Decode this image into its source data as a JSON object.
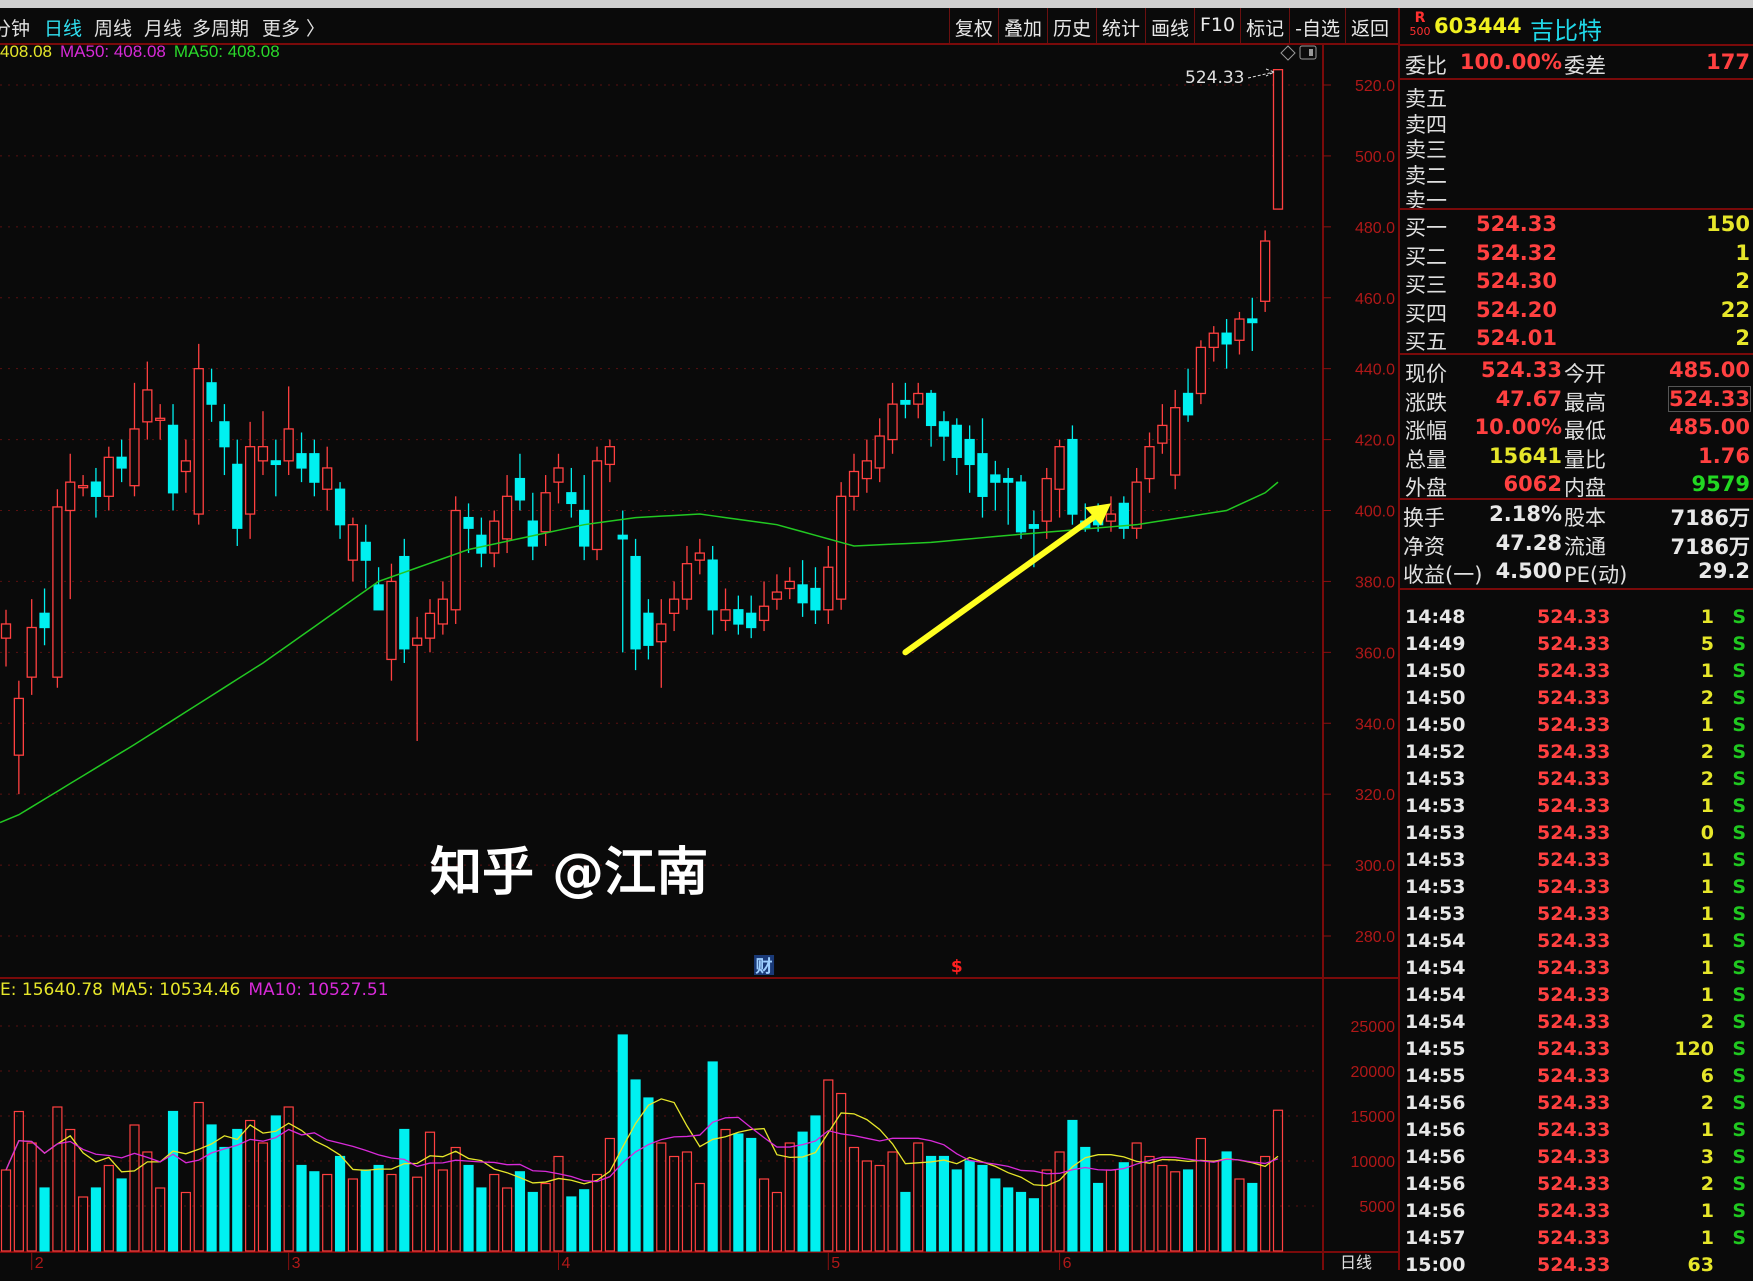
{
  "toolbar": {
    "periods": [
      {
        "label": "分钟",
        "active": false
      },
      {
        "label": "日线",
        "active": true
      },
      {
        "label": "周线",
        "active": false
      },
      {
        "label": "月线",
        "active": false
      },
      {
        "label": "多周期",
        "active": false
      },
      {
        "label": "更多 〉",
        "active": false
      }
    ],
    "buttons": [
      "复权",
      "叠加",
      "历史",
      "统计",
      "画线",
      "F10",
      "标记",
      "-自选",
      "返回"
    ]
  },
  "ma_legend": [
    {
      "text": "408.08",
      "color": "#e6e62a"
    },
    {
      "text": "MA50: 408.08",
      "color": "#d82ad8"
    },
    {
      "text": "MA50: 408.08",
      "color": "#2ad82a"
    }
  ],
  "vol_legend": [
    {
      "text": "E: 15640.78",
      "color": "#e6e62a"
    },
    {
      "text": "MA5: 10534.46",
      "color": "#e6e62a"
    },
    {
      "text": "MA10: 10527.51",
      "color": "#d82ad8"
    }
  ],
  "chart_data": {
    "type": "candlestick",
    "price_ylim": [
      275,
      530
    ],
    "price_ticks": [
      "520.0",
      "500.0",
      "480.0",
      "460.0",
      "440.0",
      "420.0",
      "400.0",
      "380.0",
      "360.0",
      "340.0",
      "320.0",
      "300.0",
      "280.0"
    ],
    "volume_ticks": [
      "25000",
      "20000",
      "15000",
      "10000",
      "5000"
    ],
    "x_labels": [
      {
        "label": "2",
        "index": 2
      },
      {
        "label": "3",
        "index": 22
      },
      {
        "label": "4",
        "index": 43
      },
      {
        "label": "5",
        "index": 64
      },
      {
        "label": "6",
        "index": 82
      }
    ],
    "period_label": "日线",
    "last_price_label": "524.33",
    "markers": [
      {
        "text": "财",
        "index": 59,
        "color": "#9ecfff",
        "bg": "#1a3a78"
      },
      {
        "text": "$",
        "index": 74,
        "color": "#ff2020",
        "bg": ""
      }
    ],
    "colors": {
      "up": "#ff4040",
      "down": "#00f0f0",
      "ma50": "#22c822",
      "vol_ma5": "#e6e62a",
      "vol_ma10": "#d82ad8",
      "arrow": "#ffff20"
    },
    "arrow": {
      "from_index": 70,
      "from_price": 360,
      "to_index": 86,
      "to_price": 402
    },
    "ma50_points": [
      [
        0,
        312
      ],
      [
        10,
        334
      ],
      [
        20,
        357
      ],
      [
        29,
        380
      ],
      [
        36,
        389
      ],
      [
        45,
        396
      ],
      [
        49,
        398
      ],
      [
        54,
        399
      ],
      [
        60,
        396
      ],
      [
        66,
        390
      ],
      [
        72,
        391
      ],
      [
        78,
        393
      ],
      [
        88,
        396
      ],
      [
        95,
        400
      ],
      [
        98,
        405
      ],
      [
        99,
        408
      ]
    ],
    "ohlcv": [
      [
        364,
        372,
        356,
        368,
        9000
      ],
      [
        331,
        352,
        320,
        347,
        15500
      ],
      [
        353,
        375,
        348,
        367,
        12000
      ],
      [
        371,
        378,
        362,
        367,
        7000
      ],
      [
        353,
        406,
        350,
        401,
        16000
      ],
      [
        400,
        416,
        375,
        408,
        13500
      ],
      [
        407,
        410,
        404,
        407,
        6000
      ],
      [
        408,
        412,
        398,
        404,
        7000
      ],
      [
        404,
        418,
        400,
        415,
        9500
      ],
      [
        415,
        420,
        408,
        412,
        8000
      ],
      [
        407,
        436,
        404,
        423,
        14000
      ],
      [
        425,
        442,
        420,
        434,
        11000
      ],
      [
        426,
        430,
        420,
        426,
        7000
      ],
      [
        424,
        430,
        400,
        405,
        15500
      ],
      [
        411,
        420,
        405,
        414,
        6500
      ],
      [
        399,
        447,
        396,
        440,
        16500
      ],
      [
        436,
        440,
        425,
        430,
        14000
      ],
      [
        425,
        430,
        410,
        418,
        11500
      ],
      [
        413,
        420,
        390,
        395,
        13500
      ],
      [
        399,
        425,
        392,
        418,
        14500
      ],
      [
        414,
        428,
        410,
        418,
        12000
      ],
      [
        414,
        420,
        404,
        413,
        15000
      ],
      [
        414,
        435,
        410,
        423,
        16000
      ],
      [
        416,
        422,
        408,
        412,
        9500
      ],
      [
        416,
        420,
        404,
        408,
        8800
      ],
      [
        406,
        418,
        400,
        412,
        8500
      ],
      [
        406,
        408,
        392,
        396,
        10500
      ],
      [
        386,
        398,
        380,
        396,
        8000
      ],
      [
        391,
        396,
        378,
        386,
        9000
      ],
      [
        379,
        384,
        372,
        372,
        9500
      ],
      [
        358,
        385,
        352,
        380,
        8500
      ],
      [
        387,
        392,
        357,
        361,
        13500
      ],
      [
        362,
        370,
        335,
        364,
        8200
      ],
      [
        364,
        375,
        360,
        371,
        13200
      ],
      [
        368,
        380,
        365,
        375,
        9000
      ],
      [
        372,
        404,
        368,
        400,
        11500
      ],
      [
        398,
        402,
        388,
        395,
        9500
      ],
      [
        393,
        398,
        384,
        388,
        7000
      ],
      [
        388,
        400,
        384,
        397,
        8500
      ],
      [
        392,
        410,
        388,
        404,
        7000
      ],
      [
        409,
        416,
        400,
        403,
        8800
      ],
      [
        397,
        405,
        386,
        390,
        6500
      ],
      [
        394,
        410,
        390,
        405,
        7500
      ],
      [
        408,
        416,
        402,
        412,
        10500
      ],
      [
        405,
        412,
        398,
        402,
        6000
      ],
      [
        400,
        410,
        386,
        390,
        6800
      ],
      [
        389,
        418,
        386,
        414,
        8500
      ],
      [
        413,
        420,
        408,
        418,
        12500
      ],
      [
        393,
        400,
        360,
        392,
        24000
      ],
      [
        387,
        392,
        355,
        361,
        19000
      ],
      [
        371,
        375,
        358,
        362,
        17000
      ],
      [
        363,
        375,
        350,
        368,
        12000
      ],
      [
        371,
        380,
        366,
        375,
        10500
      ],
      [
        375,
        390,
        372,
        385,
        11000
      ],
      [
        386,
        392,
        382,
        388,
        7500
      ],
      [
        386,
        390,
        365,
        372,
        21000
      ],
      [
        369,
        378,
        366,
        372,
        13500
      ],
      [
        372,
        376,
        365,
        368,
        13000
      ],
      [
        371,
        376,
        364,
        367,
        12500
      ],
      [
        369,
        380,
        366,
        373,
        8000
      ],
      [
        375,
        382,
        372,
        377,
        6500
      ],
      [
        378,
        384,
        375,
        380,
        12000
      ],
      [
        379,
        386,
        370,
        374,
        13200
      ],
      [
        378,
        384,
        368,
        372,
        15000
      ],
      [
        372,
        390,
        368,
        384,
        19000
      ],
      [
        375,
        408,
        372,
        404,
        17500
      ],
      [
        404,
        416,
        400,
        411,
        11500
      ],
      [
        409,
        420,
        405,
        414,
        10000
      ],
      [
        412,
        426,
        408,
        421,
        9500
      ],
      [
        420,
        436,
        416,
        430,
        11000
      ],
      [
        431,
        436,
        426,
        430,
        6500
      ],
      [
        430,
        436,
        426,
        433,
        12000
      ],
      [
        433,
        434,
        418,
        424,
        10500
      ],
      [
        425,
        428,
        414,
        421,
        10500
      ],
      [
        424,
        426,
        410,
        415,
        9000
      ],
      [
        420,
        424,
        405,
        413,
        10000
      ],
      [
        416,
        426,
        398,
        404,
        9500
      ],
      [
        410,
        414,
        400,
        408,
        8000
      ],
      [
        409,
        412,
        396,
        408,
        7000
      ],
      [
        408,
        410,
        392,
        394,
        6500
      ],
      [
        396,
        400,
        384,
        395,
        5800
      ],
      [
        397,
        412,
        392,
        409,
        9000
      ],
      [
        406,
        420,
        398,
        418,
        11000
      ],
      [
        420,
        424,
        396,
        399,
        14500
      ],
      [
        397,
        402,
        394,
        395,
        11500
      ],
      [
        398,
        402,
        394,
        396,
        7500
      ],
      [
        397,
        404,
        394,
        399,
        9000
      ],
      [
        402,
        404,
        392,
        395,
        9800
      ],
      [
        395,
        412,
        392,
        408,
        12000
      ],
      [
        409,
        422,
        405,
        418,
        10500
      ],
      [
        419,
        430,
        416,
        424,
        9500
      ],
      [
        410,
        434,
        406,
        429,
        8800
      ],
      [
        433,
        440,
        425,
        427,
        9000
      ],
      [
        433,
        448,
        430,
        446,
        12500
      ],
      [
        446,
        452,
        442,
        450,
        10000
      ],
      [
        450,
        454,
        440,
        447,
        11000
      ],
      [
        448,
        456,
        444,
        454,
        8000
      ],
      [
        454,
        460,
        445,
        453,
        7500
      ],
      [
        459,
        479,
        456,
        476,
        10500
      ],
      [
        485,
        524.33,
        485,
        524.33,
        15641
      ]
    ]
  },
  "panel": {
    "badge_top": "R",
    "badge_bottom": "500",
    "code": "603444",
    "name": "吉比特",
    "weibi": {
      "label": "委比",
      "value": "100.00%",
      "label2": "委差",
      "value2": "177"
    },
    "sell": [
      {
        "label": "卖五"
      },
      {
        "label": "卖四"
      },
      {
        "label": "卖三"
      },
      {
        "label": "卖二"
      },
      {
        "label": "卖一"
      }
    ],
    "buy": [
      {
        "label": "买一",
        "price": "524.33",
        "vol": "150"
      },
      {
        "label": "买二",
        "price": "524.32",
        "vol": "1"
      },
      {
        "label": "买三",
        "price": "524.30",
        "vol": "2"
      },
      {
        "label": "买四",
        "price": "524.20",
        "vol": "22"
      },
      {
        "label": "买五",
        "price": "524.01",
        "vol": "2"
      }
    ],
    "quote": [
      {
        "l1": "现价",
        "v1": "524.33",
        "c1": "#ff4040",
        "l2": "今开",
        "v2": "485.00",
        "c2": "#ff4040"
      },
      {
        "l1": "涨跌",
        "v1": "47.67",
        "c1": "#ff4040",
        "l2": "最高",
        "v2": "524.33",
        "c2": "#ff4040"
      },
      {
        "l1": "涨幅",
        "v1": "10.00%",
        "c1": "#ff4040",
        "l2": "最低",
        "v2": "485.00",
        "c2": "#ff4040"
      },
      {
        "l1": "总量",
        "v1": "15641",
        "c1": "#e6e62a",
        "l2": "量比",
        "v2": "1.76",
        "c2": "#ff4040"
      },
      {
        "l1": "外盘",
        "v1": "6062",
        "c1": "#ff4040",
        "l2": "内盘",
        "v2": "9579",
        "c2": "#22d822"
      }
    ],
    "fund": [
      {
        "l1": "换手",
        "v1": "2.18%",
        "l2": "股本",
        "v2": "7186万"
      },
      {
        "l1": "净资",
        "v1": "47.28",
        "l2": "流通",
        "v2": "7186万"
      },
      {
        "l1": "收益(一)",
        "v1": "4.500",
        "l2": "PE(动)",
        "v2": "29.2"
      }
    ],
    "ticks": [
      [
        "14:48",
        "524.33",
        "1",
        "S"
      ],
      [
        "14:49",
        "524.33",
        "5",
        "S"
      ],
      [
        "14:50",
        "524.33",
        "1",
        "S"
      ],
      [
        "14:50",
        "524.33",
        "2",
        "S"
      ],
      [
        "14:50",
        "524.33",
        "1",
        "S"
      ],
      [
        "14:52",
        "524.33",
        "2",
        "S"
      ],
      [
        "14:53",
        "524.33",
        "2",
        "S"
      ],
      [
        "14:53",
        "524.33",
        "1",
        "S"
      ],
      [
        "14:53",
        "524.33",
        "0",
        "S"
      ],
      [
        "14:53",
        "524.33",
        "1",
        "S"
      ],
      [
        "14:53",
        "524.33",
        "1",
        "S"
      ],
      [
        "14:53",
        "524.33",
        "1",
        "S"
      ],
      [
        "14:54",
        "524.33",
        "1",
        "S"
      ],
      [
        "14:54",
        "524.33",
        "1",
        "S"
      ],
      [
        "14:54",
        "524.33",
        "1",
        "S"
      ],
      [
        "14:54",
        "524.33",
        "2",
        "S"
      ],
      [
        "14:55",
        "524.33",
        "120",
        "S"
      ],
      [
        "14:55",
        "524.33",
        "6",
        "S"
      ],
      [
        "14:56",
        "524.33",
        "2",
        "S"
      ],
      [
        "14:56",
        "524.33",
        "1",
        "S"
      ],
      [
        "14:56",
        "524.33",
        "3",
        "S"
      ],
      [
        "14:56",
        "524.33",
        "2",
        "S"
      ],
      [
        "14:56",
        "524.33",
        "1",
        "S"
      ],
      [
        "14:57",
        "524.33",
        "1",
        "S"
      ],
      [
        "15:00",
        "524.33",
        "63",
        ""
      ]
    ]
  },
  "watermark": "知乎 @江南"
}
